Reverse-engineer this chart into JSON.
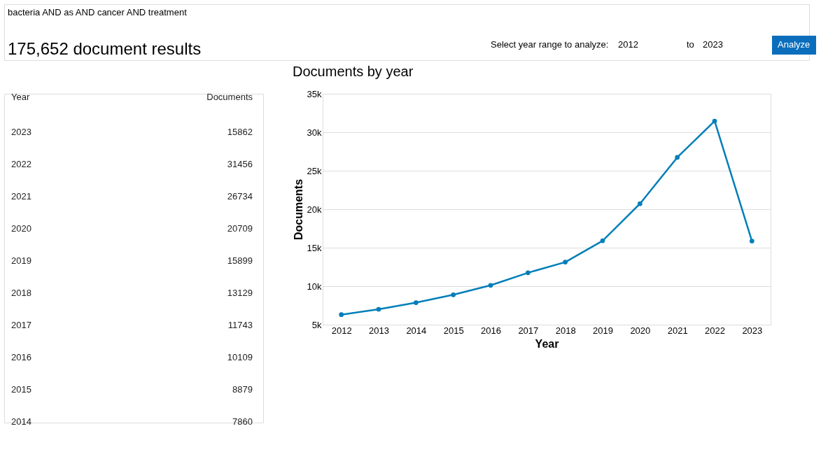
{
  "chart_data": {
    "type": "line",
    "title": "Documents by year",
    "xlabel": "Year",
    "ylabel": "Documents",
    "categories": [
      "2012",
      "2013",
      "2014",
      "2015",
      "2016",
      "2017",
      "2018",
      "2019",
      "2020",
      "2021",
      "2022",
      "2023"
    ],
    "series": [
      {
        "color": "#007eb9",
        "values": [
          6300,
          7000,
          7860,
          8879,
          10109,
          11743,
          13129,
          15899,
          20709,
          26734,
          31456,
          15862
        ]
      }
    ],
    "ylim": [
      5000,
      35000
    ],
    "yticks": [
      {
        "value": 5000,
        "label": "5k"
      },
      {
        "value": 10000,
        "label": "10k"
      },
      {
        "value": 15000,
        "label": "15k"
      },
      {
        "value": 20000,
        "label": "20k"
      },
      {
        "value": 25000,
        "label": "25k"
      },
      {
        "value": 30000,
        "label": "30k"
      },
      {
        "value": 35000,
        "label": "35k"
      }
    ],
    "grid": "y",
    "marker": "circle",
    "line_style": "solid",
    "annotations": [
      "bacteria AND as AND cancer AND treatment",
      "175,652 document results",
      "Select year range to analyze:",
      "2012",
      "to",
      "2023",
      "Analyze",
      "Year",
      "Documents",
      "2023",
      "15862",
      "2022",
      "31456",
      "2021",
      "26734",
      "2020",
      "20709",
      "2019",
      "15899",
      "2018",
      "13129",
      "2017",
      "11743",
      "2016",
      "10109",
      "2015",
      "8879",
      "2014",
      "7860"
    ]
  }
}
